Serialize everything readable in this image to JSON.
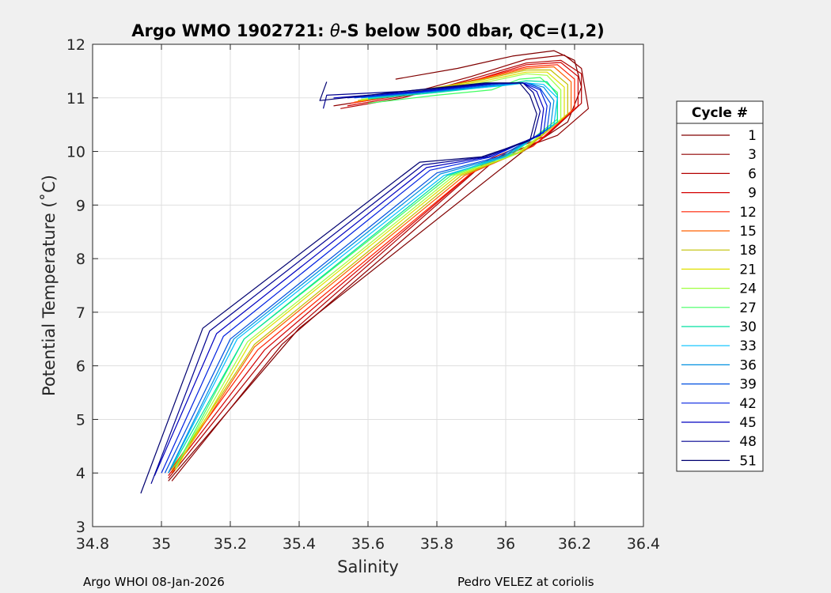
{
  "chart_data": {
    "type": "line",
    "title_prefix": "Argo WMO 1902721: ",
    "title_theta": "θ",
    "title_suffix": "-S below 500 dbar,  QC=(1,2)",
    "xlabel": "Salinity",
    "ylabel": "Potential Temperature (˚C)",
    "xlim": [
      34.8,
      36.4
    ],
    "ylim": [
      3,
      12
    ],
    "xticks": [
      34.8,
      35,
      35.2,
      35.4,
      35.6,
      35.8,
      36,
      36.2,
      36.4
    ],
    "xtick_labels": [
      "34.8",
      "35",
      "35.2",
      "35.4",
      "35.6",
      "35.8",
      "36",
      "36.2",
      "36.4"
    ],
    "yticks": [
      3,
      4,
      5,
      6,
      7,
      8,
      9,
      10,
      11,
      12
    ],
    "ytick_labels": [
      "3",
      "4",
      "5",
      "6",
      "7",
      "8",
      "9",
      "10",
      "11",
      "12"
    ],
    "grid": true,
    "legend_title": "Cycle #",
    "legend_position": "right-outside",
    "series": [
      {
        "name": "1",
        "color": "#800000",
        "points": [
          [
            35.68,
            11.35
          ],
          [
            35.86,
            11.55
          ],
          [
            36.02,
            11.78
          ],
          [
            36.14,
            11.88
          ],
          [
            36.2,
            11.7
          ],
          [
            36.22,
            11.2
          ],
          [
            36.18,
            10.55
          ],
          [
            36.05,
            10.0
          ],
          [
            35.4,
            6.7
          ],
          [
            35.02,
            3.85
          ]
        ]
      },
      {
        "name": "3",
        "color": "#8f0000",
        "points": [
          [
            35.5,
            10.85
          ],
          [
            35.7,
            11.05
          ],
          [
            35.9,
            11.4
          ],
          [
            36.06,
            11.72
          ],
          [
            36.17,
            11.8
          ],
          [
            36.22,
            11.55
          ],
          [
            36.24,
            10.8
          ],
          [
            36.15,
            10.3
          ],
          [
            35.98,
            9.9
          ],
          [
            35.35,
            6.4
          ],
          [
            35.03,
            3.85
          ]
        ]
      },
      {
        "name": "6",
        "color": "#b30000",
        "points": [
          [
            35.52,
            10.8
          ],
          [
            35.7,
            11.0
          ],
          [
            35.9,
            11.35
          ],
          [
            36.06,
            11.65
          ],
          [
            36.16,
            11.7
          ],
          [
            36.22,
            11.45
          ],
          [
            36.22,
            10.9
          ],
          [
            36.12,
            10.3
          ],
          [
            35.95,
            9.85
          ],
          [
            35.32,
            6.3
          ],
          [
            35.02,
            3.9
          ]
        ]
      },
      {
        "name": "9",
        "color": "#d40000",
        "points": [
          [
            35.54,
            10.85
          ],
          [
            35.72,
            11.05
          ],
          [
            35.92,
            11.35
          ],
          [
            36.06,
            11.62
          ],
          [
            36.16,
            11.66
          ],
          [
            36.21,
            11.4
          ],
          [
            36.21,
            10.85
          ],
          [
            36.1,
            10.2
          ],
          [
            35.92,
            9.7
          ],
          [
            35.3,
            6.3
          ],
          [
            35.02,
            3.95
          ]
        ]
      },
      {
        "name": "12",
        "color": "#ff2000",
        "points": [
          [
            35.55,
            10.9
          ],
          [
            35.74,
            11.1
          ],
          [
            35.92,
            11.35
          ],
          [
            36.06,
            11.58
          ],
          [
            36.15,
            11.62
          ],
          [
            36.2,
            11.35
          ],
          [
            36.2,
            10.8
          ],
          [
            36.08,
            10.1
          ],
          [
            35.9,
            9.6
          ],
          [
            35.28,
            6.3
          ],
          [
            35.02,
            4.0
          ]
        ]
      },
      {
        "name": "15",
        "color": "#ff6000",
        "points": [
          [
            35.56,
            10.92
          ],
          [
            35.75,
            11.12
          ],
          [
            35.93,
            11.35
          ],
          [
            36.06,
            11.55
          ],
          [
            36.14,
            11.58
          ],
          [
            36.19,
            11.3
          ],
          [
            36.19,
            10.75
          ],
          [
            36.06,
            10.05
          ],
          [
            35.88,
            9.55
          ],
          [
            35.27,
            6.35
          ],
          [
            35.03,
            4.0
          ]
        ]
      },
      {
        "name": "18",
        "color": "#c0c000",
        "points": [
          [
            35.57,
            10.95
          ],
          [
            35.76,
            11.15
          ],
          [
            35.94,
            11.35
          ],
          [
            36.06,
            11.52
          ],
          [
            36.13,
            11.52
          ],
          [
            36.18,
            11.25
          ],
          [
            36.18,
            10.7
          ],
          [
            36.05,
            10.0
          ],
          [
            35.87,
            9.55
          ],
          [
            35.27,
            6.4
          ],
          [
            35.03,
            4.05
          ]
        ]
      },
      {
        "name": "21",
        "color": "#e0e000",
        "points": [
          [
            35.58,
            10.95
          ],
          [
            35.77,
            11.15
          ],
          [
            35.94,
            11.32
          ],
          [
            36.06,
            11.48
          ],
          [
            36.12,
            11.48
          ],
          [
            36.17,
            11.2
          ],
          [
            36.17,
            10.65
          ],
          [
            36.04,
            9.98
          ],
          [
            35.86,
            9.55
          ],
          [
            35.26,
            6.45
          ],
          [
            35.04,
            4.05
          ]
        ]
      },
      {
        "name": "24",
        "color": "#a0ff40",
        "points": [
          [
            35.58,
            10.97
          ],
          [
            35.78,
            11.15
          ],
          [
            35.95,
            11.3
          ],
          [
            36.06,
            11.45
          ],
          [
            36.12,
            11.42
          ],
          [
            36.16,
            11.15
          ],
          [
            36.16,
            10.6
          ],
          [
            36.03,
            9.95
          ],
          [
            35.85,
            9.55
          ],
          [
            35.25,
            6.45
          ],
          [
            35.04,
            4.1
          ]
        ]
      },
      {
        "name": "27",
        "color": "#40ff60",
        "points": [
          [
            35.6,
            10.9
          ],
          [
            35.8,
            11.05
          ],
          [
            35.96,
            11.15
          ],
          [
            36.04,
            11.35
          ],
          [
            36.1,
            11.38
          ],
          [
            36.15,
            11.1
          ],
          [
            36.15,
            10.6
          ],
          [
            36.02,
            9.95
          ],
          [
            35.84,
            9.55
          ],
          [
            35.24,
            6.5
          ],
          [
            35.04,
            4.1
          ]
        ]
      },
      {
        "name": "30",
        "color": "#00e0a0",
        "points": [
          [
            35.6,
            10.98
          ],
          [
            35.8,
            11.1
          ],
          [
            35.97,
            11.22
          ],
          [
            36.06,
            11.32
          ],
          [
            36.12,
            11.3
          ],
          [
            36.15,
            11.05
          ],
          [
            36.15,
            10.55
          ],
          [
            36.01,
            9.95
          ],
          [
            35.83,
            9.55
          ],
          [
            35.24,
            6.5
          ],
          [
            35.03,
            4.1
          ]
        ]
      },
      {
        "name": "33",
        "color": "#00c0ff",
        "points": [
          [
            35.6,
            11.0
          ],
          [
            35.8,
            11.12
          ],
          [
            35.98,
            11.22
          ],
          [
            36.06,
            11.28
          ],
          [
            36.11,
            11.25
          ],
          [
            36.15,
            11.0
          ],
          [
            36.14,
            10.5
          ],
          [
            36.0,
            9.9
          ],
          [
            35.82,
            9.55
          ],
          [
            35.22,
            6.5
          ],
          [
            35.02,
            4.0
          ]
        ]
      },
      {
        "name": "36",
        "color": "#0090e0",
        "points": [
          [
            35.58,
            11.0
          ],
          [
            35.8,
            11.12
          ],
          [
            35.98,
            11.24
          ],
          [
            36.06,
            11.28
          ],
          [
            36.11,
            11.2
          ],
          [
            36.14,
            10.95
          ],
          [
            36.13,
            10.45
          ],
          [
            35.99,
            9.9
          ],
          [
            35.81,
            9.58
          ],
          [
            35.21,
            6.5
          ],
          [
            35.02,
            4.0
          ]
        ]
      },
      {
        "name": "39",
        "color": "#0050e0",
        "points": [
          [
            35.56,
            11.0
          ],
          [
            35.78,
            11.12
          ],
          [
            35.98,
            11.26
          ],
          [
            36.06,
            11.28
          ],
          [
            36.1,
            11.18
          ],
          [
            36.13,
            10.9
          ],
          [
            36.12,
            10.4
          ],
          [
            35.98,
            9.9
          ],
          [
            35.8,
            9.6
          ],
          [
            35.2,
            6.5
          ],
          [
            35.01,
            4.0
          ]
        ]
      },
      {
        "name": "42",
        "color": "#0020e0",
        "points": [
          [
            35.54,
            11.0
          ],
          [
            35.76,
            11.12
          ],
          [
            35.96,
            11.26
          ],
          [
            36.05,
            11.28
          ],
          [
            36.1,
            11.15
          ],
          [
            36.12,
            10.85
          ],
          [
            36.11,
            10.35
          ],
          [
            35.96,
            9.9
          ],
          [
            35.78,
            9.65
          ],
          [
            35.18,
            6.55
          ],
          [
            35.0,
            4.0
          ]
        ]
      },
      {
        "name": "45",
        "color": "#0000c0",
        "points": [
          [
            35.5,
            11.0
          ],
          [
            35.74,
            11.12
          ],
          [
            35.96,
            11.27
          ],
          [
            36.05,
            11.28
          ],
          [
            36.09,
            11.12
          ],
          [
            36.11,
            10.8
          ],
          [
            36.1,
            10.3
          ],
          [
            35.95,
            9.9
          ],
          [
            35.77,
            9.7
          ],
          [
            35.16,
            6.6
          ],
          [
            34.98,
            3.95
          ]
        ]
      },
      {
        "name": "48",
        "color": "#000090",
        "points": [
          [
            35.47,
            10.8
          ],
          [
            35.48,
            11.05
          ],
          [
            35.7,
            11.12
          ],
          [
            35.95,
            11.27
          ],
          [
            36.05,
            11.28
          ],
          [
            36.08,
            11.1
          ],
          [
            36.1,
            10.75
          ],
          [
            36.08,
            10.25
          ],
          [
            35.94,
            9.9
          ],
          [
            35.76,
            9.75
          ],
          [
            35.14,
            6.65
          ],
          [
            34.97,
            3.8
          ]
        ]
      },
      {
        "name": "51",
        "color": "#000070",
        "points": [
          [
            35.48,
            11.3
          ],
          [
            35.46,
            10.95
          ],
          [
            35.7,
            11.12
          ],
          [
            35.94,
            11.28
          ],
          [
            36.04,
            11.28
          ],
          [
            36.07,
            11.05
          ],
          [
            36.09,
            10.7
          ],
          [
            36.07,
            10.2
          ],
          [
            35.93,
            9.9
          ],
          [
            35.75,
            9.8
          ],
          [
            35.12,
            6.7
          ],
          [
            34.94,
            3.62
          ]
        ]
      }
    ]
  },
  "footer": {
    "left": "Argo WHOI 08-Jan-2026",
    "right": "Pedro VELEZ at coriolis"
  }
}
